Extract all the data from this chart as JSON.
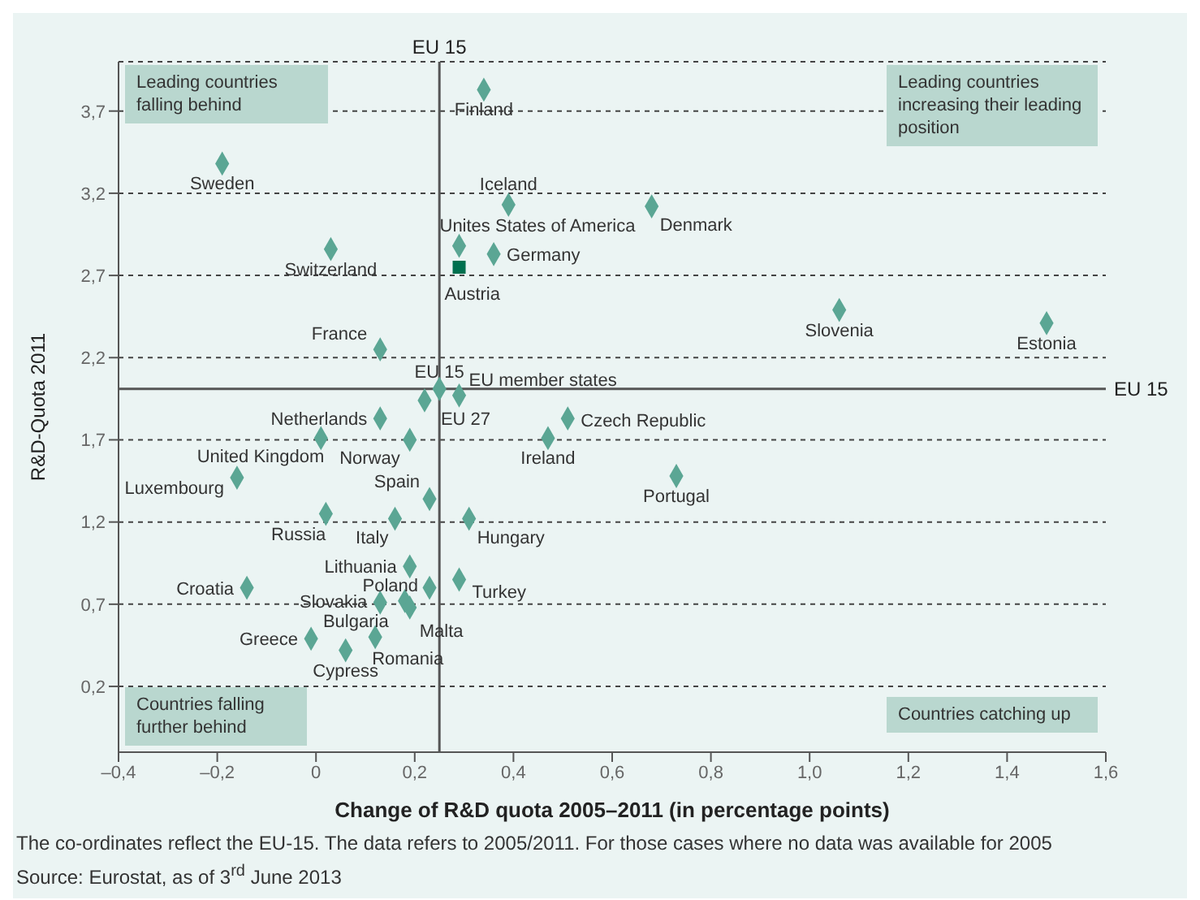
{
  "chart_data": {
    "type": "scatter",
    "xlabel": "Change of R&D quota 2005–2011 (in percentage points)",
    "ylabel": "R&D-Quota 2011",
    "xlim": [
      -0.4,
      1.6
    ],
    "xticks": [
      {
        "value": -0.4,
        "label": "–0,4"
      },
      {
        "value": -0.2,
        "label": "–0,2"
      },
      0,
      {
        "value": 0.2,
        "label": "0,2"
      },
      {
        "value": 0.4,
        "label": "0,4"
      },
      {
        "value": 0.6,
        "label": "0,6"
      },
      {
        "value": 0.8,
        "label": "0,8"
      },
      {
        "value": 1.0,
        "label": "1,0"
      },
      {
        "value": 1.2,
        "label": "1,2"
      },
      {
        "value": 1.4,
        "label": "1,4"
      },
      {
        "value": 1.6,
        "label": "1,6"
      }
    ],
    "ylim": [
      -0.2,
      4
    ],
    "yticks": [
      {
        "value": 0.2,
        "label": "0,2"
      },
      {
        "value": 0.7,
        "label": "0,7"
      },
      {
        "value": 1.2,
        "label": "1,2"
      },
      {
        "value": 1.7,
        "label": "1,7"
      },
      {
        "value": 2.2,
        "label": "2,2"
      },
      {
        "value": 2.7,
        "label": "2,7"
      },
      {
        "value": 3.2,
        "label": "3,2"
      },
      {
        "value": 3.7,
        "label": "3,7"
      }
    ],
    "grid": "y",
    "legend": false,
    "marker": "diamond",
    "series": [
      {
        "color": "#5ba694",
        "x": [
          0.34,
          -0.19,
          0.39,
          0.29,
          0.68,
          0.36,
          0.03,
          0.13,
          1.06,
          1.48,
          0.25,
          0.29,
          0.22,
          0.13,
          0.51,
          0.01,
          0.19,
          0.47,
          -0.16,
          0.23,
          0.73,
          0.02,
          0.16,
          0.31,
          0.19,
          -0.14,
          0.23,
          0.29,
          0.13,
          0.18,
          0.19,
          -0.01,
          0.12,
          0.06
        ],
        "values": [
          3.83,
          3.38,
          3.13,
          2.88,
          3.12,
          2.83,
          2.86,
          2.25,
          2.49,
          2.41,
          2.01,
          1.97,
          1.94,
          1.83,
          1.83,
          1.71,
          1.7,
          1.71,
          1.47,
          1.34,
          1.48,
          1.25,
          1.22,
          1.22,
          0.93,
          0.8,
          0.8,
          0.85,
          0.71,
          0.72,
          0.68,
          0.49,
          0.5,
          0.42
        ]
      },
      {
        "color": "#00704f",
        "marker": "square",
        "x": [
          0.29
        ],
        "values": [
          2.75
        ]
      }
    ],
    "ref_lines": [
      {
        "axis": "x",
        "value": 0.25,
        "label": "EU 15",
        "color": "#555555"
      },
      {
        "axis": "y",
        "value": 2.01,
        "label": "EU 15",
        "color": "#555555"
      }
    ],
    "annotations": [
      {
        "text": "Finland",
        "x": 0.34,
        "y": 3.83
      },
      {
        "text": "Sweden",
        "x": -0.19,
        "y": 3.38
      },
      {
        "text": "Iceland",
        "x": 0.39,
        "y": 3.13
      },
      {
        "text": "Unites States of America",
        "x": 0.29,
        "y": 2.88
      },
      {
        "text": "Denmark",
        "x": 0.68,
        "y": 3.12
      },
      {
        "text": "Germany",
        "x": 0.36,
        "y": 2.83
      },
      {
        "text": "Austria",
        "x": 0.29,
        "y": 2.75
      },
      {
        "text": "Switzerland",
        "x": 0.03,
        "y": 2.86
      },
      {
        "text": "France",
        "x": 0.13,
        "y": 2.25
      },
      {
        "text": "Slovenia",
        "x": 1.06,
        "y": 2.49
      },
      {
        "text": "Estonia",
        "x": 1.48,
        "y": 2.41
      },
      {
        "text": "EU 15",
        "x": 0.25,
        "y": 2.01
      },
      {
        "text": "EU member states",
        "x": 0.29,
        "y": 1.97
      },
      {
        "text": "EU 27",
        "x": 0.22,
        "y": 1.94
      },
      {
        "text": "Netherlands",
        "x": 0.13,
        "y": 1.83
      },
      {
        "text": "Czech Republic",
        "x": 0.51,
        "y": 1.83
      },
      {
        "text": "United Kingdom",
        "x": 0.01,
        "y": 1.71
      },
      {
        "text": "Norway",
        "x": 0.19,
        "y": 1.7
      },
      {
        "text": "Ireland",
        "x": 0.47,
        "y": 1.71
      },
      {
        "text": "Luxembourg",
        "x": -0.16,
        "y": 1.47
      },
      {
        "text": "Spain",
        "x": 0.23,
        "y": 1.34
      },
      {
        "text": "Portugal",
        "x": 0.73,
        "y": 1.48
      },
      {
        "text": "Russia",
        "x": 0.02,
        "y": 1.25
      },
      {
        "text": "Italy",
        "x": 0.16,
        "y": 1.22
      },
      {
        "text": "Hungary",
        "x": 0.31,
        "y": 1.22
      },
      {
        "text": "Lithuania",
        "x": 0.19,
        "y": 0.93
      },
      {
        "text": "Croatia",
        "x": -0.14,
        "y": 0.8
      },
      {
        "text": "Poland",
        "x": 0.23,
        "y": 0.8
      },
      {
        "text": "Turkey",
        "x": 0.29,
        "y": 0.85
      },
      {
        "text": "Slovakia",
        "x": 0.13,
        "y": 0.71
      },
      {
        "text": "Bulgaria",
        "x": 0.18,
        "y": 0.72
      },
      {
        "text": "Malta",
        "x": 0.19,
        "y": 0.68
      },
      {
        "text": "Greece",
        "x": -0.01,
        "y": 0.49
      },
      {
        "text": "Romania",
        "x": 0.12,
        "y": 0.5
      },
      {
        "text": "Cypress",
        "x": 0.06,
        "y": 0.42
      },
      "Leading countries falling behind",
      "Leading countries increasing their leading position",
      "Countries falling further behind",
      "Countries catching up",
      "The co-ordinates reflect the EU-15.  The data refers to 2005/2011. For those cases where no data was available for 2005",
      "Source: Eurostat, as of 3$^{rd}$ June 2013"
    ]
  }
}
